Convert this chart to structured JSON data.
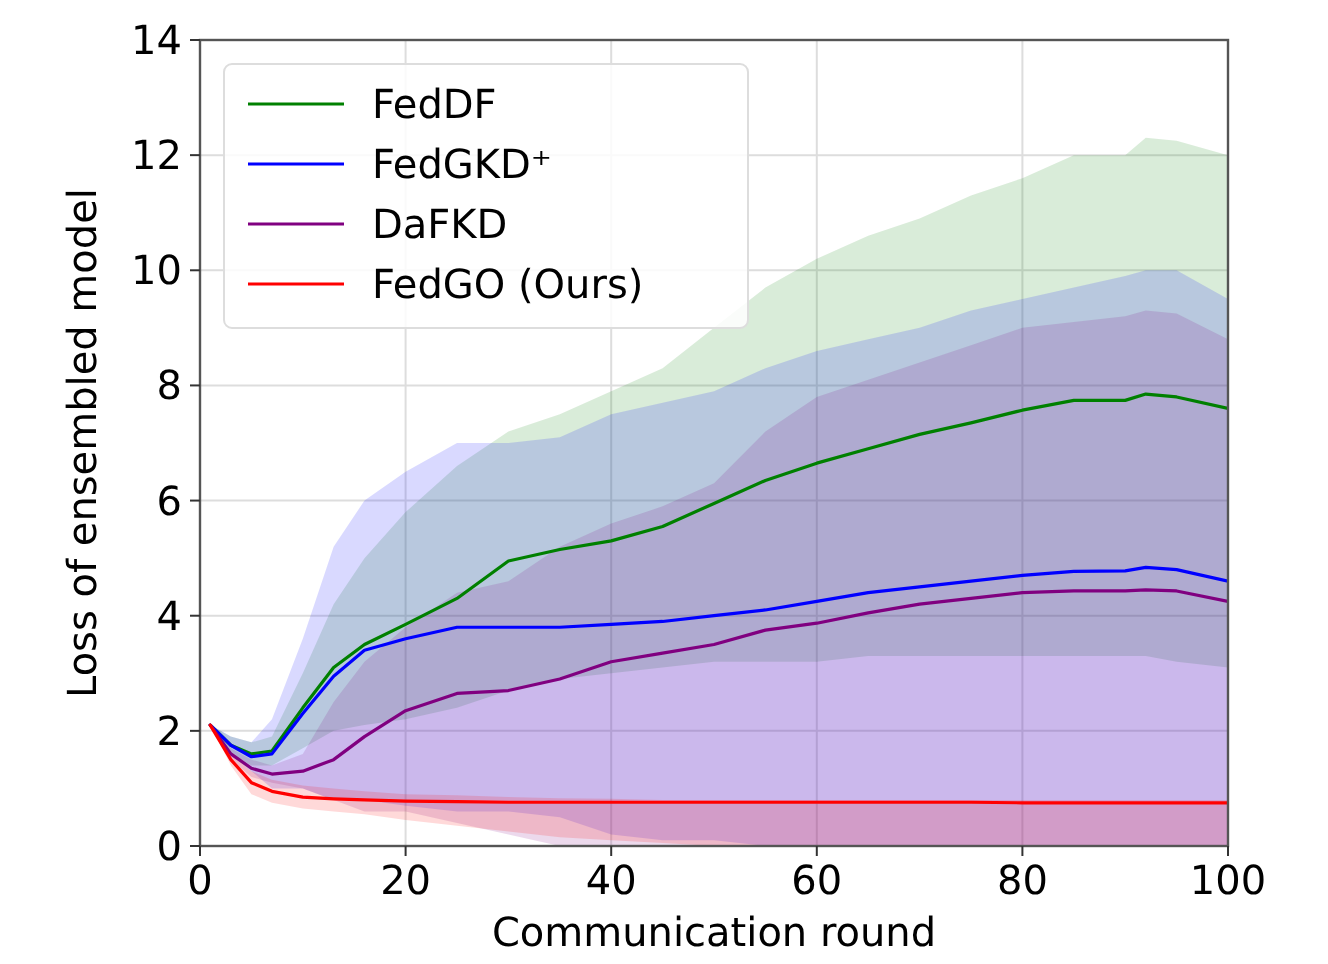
{
  "chart_data": {
    "type": "line",
    "xlabel": "Communication round",
    "ylabel": "Loss of ensembled model",
    "x": [
      1,
      3,
      5,
      7,
      10,
      13,
      16,
      20,
      25,
      30,
      35,
      40,
      45,
      50,
      55,
      60,
      65,
      70,
      75,
      80,
      85,
      90,
      92,
      95,
      100
    ],
    "series": [
      {
        "name": "FedDF",
        "color": "#008000",
        "values": [
          2.1,
          1.75,
          1.6,
          1.65,
          2.4,
          3.1,
          3.5,
          3.85,
          4.3,
          4.95,
          5.15,
          5.3,
          5.55,
          5.95,
          6.35,
          6.65,
          6.9,
          7.15,
          7.35,
          7.57,
          7.74,
          7.74,
          7.85,
          7.8,
          7.6
        ],
        "upper": [
          2.1,
          1.9,
          1.8,
          1.9,
          3.0,
          4.2,
          5.0,
          5.8,
          6.6,
          7.2,
          7.5,
          7.9,
          8.3,
          9.0,
          9.7,
          10.2,
          10.6,
          10.9,
          11.3,
          11.6,
          12.0,
          12.0,
          12.3,
          12.25,
          12.0
        ],
        "lower": [
          2.1,
          1.6,
          1.4,
          1.4,
          1.7,
          2.0,
          2.1,
          2.2,
          2.4,
          2.7,
          2.9,
          3.0,
          3.1,
          3.2,
          3.2,
          3.2,
          3.3,
          3.3,
          3.3,
          3.3,
          3.3,
          3.3,
          3.3,
          3.2,
          3.1
        ]
      },
      {
        "name": "FedGKD⁺",
        "color": "#0000ff",
        "values": [
          2.1,
          1.75,
          1.55,
          1.6,
          2.3,
          2.95,
          3.4,
          3.6,
          3.8,
          3.8,
          3.8,
          3.85,
          3.9,
          4.0,
          4.1,
          4.25,
          4.4,
          4.5,
          4.6,
          4.7,
          4.77,
          4.78,
          4.84,
          4.8,
          4.6
        ],
        "upper": [
          2.1,
          1.9,
          1.8,
          2.2,
          3.6,
          5.2,
          6.0,
          6.5,
          7.0,
          7.0,
          7.1,
          7.5,
          7.7,
          7.9,
          8.3,
          8.6,
          8.8,
          9.0,
          9.3,
          9.5,
          9.7,
          9.9,
          10.0,
          10.0,
          9.5
        ],
        "lower": [
          2.1,
          1.6,
          1.3,
          1.0,
          1.0,
          0.8,
          0.8,
          0.7,
          0.6,
          0.6,
          0.5,
          0.2,
          0.1,
          0.1,
          0,
          0,
          0,
          0,
          0,
          0,
          0,
          0,
          0,
          0,
          0
        ]
      },
      {
        "name": "DaFKD",
        "color": "#800080",
        "values": [
          2.1,
          1.6,
          1.35,
          1.25,
          1.3,
          1.5,
          1.9,
          2.35,
          2.65,
          2.7,
          2.9,
          3.2,
          3.35,
          3.5,
          3.75,
          3.87,
          4.05,
          4.2,
          4.3,
          4.4,
          4.43,
          4.43,
          4.45,
          4.43,
          4.25
        ],
        "upper": [
          2.1,
          1.7,
          1.5,
          1.4,
          1.6,
          2.5,
          3.2,
          3.8,
          4.4,
          4.6,
          5.2,
          5.6,
          5.9,
          6.3,
          7.2,
          7.8,
          8.1,
          8.4,
          8.7,
          9.0,
          9.1,
          9.2,
          9.3,
          9.25,
          8.8
        ],
        "lower": [
          2.1,
          1.5,
          1.2,
          1.1,
          1.0,
          0.8,
          0.6,
          0.6,
          0.4,
          0.2,
          0,
          0,
          0,
          0,
          0,
          0,
          0,
          0,
          0,
          0,
          0,
          0,
          0,
          0,
          0
        ]
      },
      {
        "name": "FedGO (Ours)",
        "color": "#ff0000",
        "values": [
          2.1,
          1.5,
          1.1,
          0.95,
          0.85,
          0.82,
          0.8,
          0.78,
          0.77,
          0.76,
          0.76,
          0.76,
          0.76,
          0.76,
          0.76,
          0.76,
          0.76,
          0.76,
          0.76,
          0.75,
          0.75,
          0.75,
          0.75,
          0.75,
          0.75
        ],
        "upper": [
          2.1,
          1.6,
          1.3,
          1.15,
          1.05,
          1.0,
          0.95,
          0.9,
          0.88,
          0.85,
          0.83,
          0.82,
          0.8,
          0.8,
          0.8,
          0.8,
          0.8,
          0.8,
          0.8,
          0.8,
          0.8,
          0.8,
          0.8,
          0.8,
          0.8
        ],
        "lower": [
          2.1,
          1.4,
          0.9,
          0.75,
          0.65,
          0.6,
          0.55,
          0.45,
          0.35,
          0.25,
          0.15,
          0.1,
          0.05,
          0,
          0,
          0,
          0,
          0,
          0,
          0,
          0,
          0,
          0,
          0,
          0
        ]
      }
    ],
    "xlim": [
      0,
      100
    ],
    "xticks": [
      0,
      20,
      40,
      60,
      80,
      100
    ],
    "ylim": [
      0,
      14
    ],
    "yticks": [
      0,
      2,
      4,
      6,
      8,
      10,
      12,
      14
    ],
    "grid": true,
    "legend": "top left",
    "line_style": "solid"
  }
}
